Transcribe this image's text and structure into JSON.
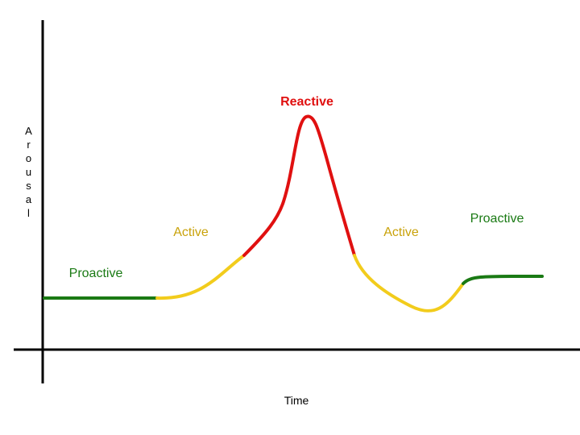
{
  "axes": {
    "y_label": "Arousal",
    "x_label": "Time"
  },
  "labels": {
    "reactive": "Reactive",
    "active_left": "Active",
    "active_right": "Active",
    "proactive_left": "Proactive",
    "proactive_right": "Proactive"
  }
}
